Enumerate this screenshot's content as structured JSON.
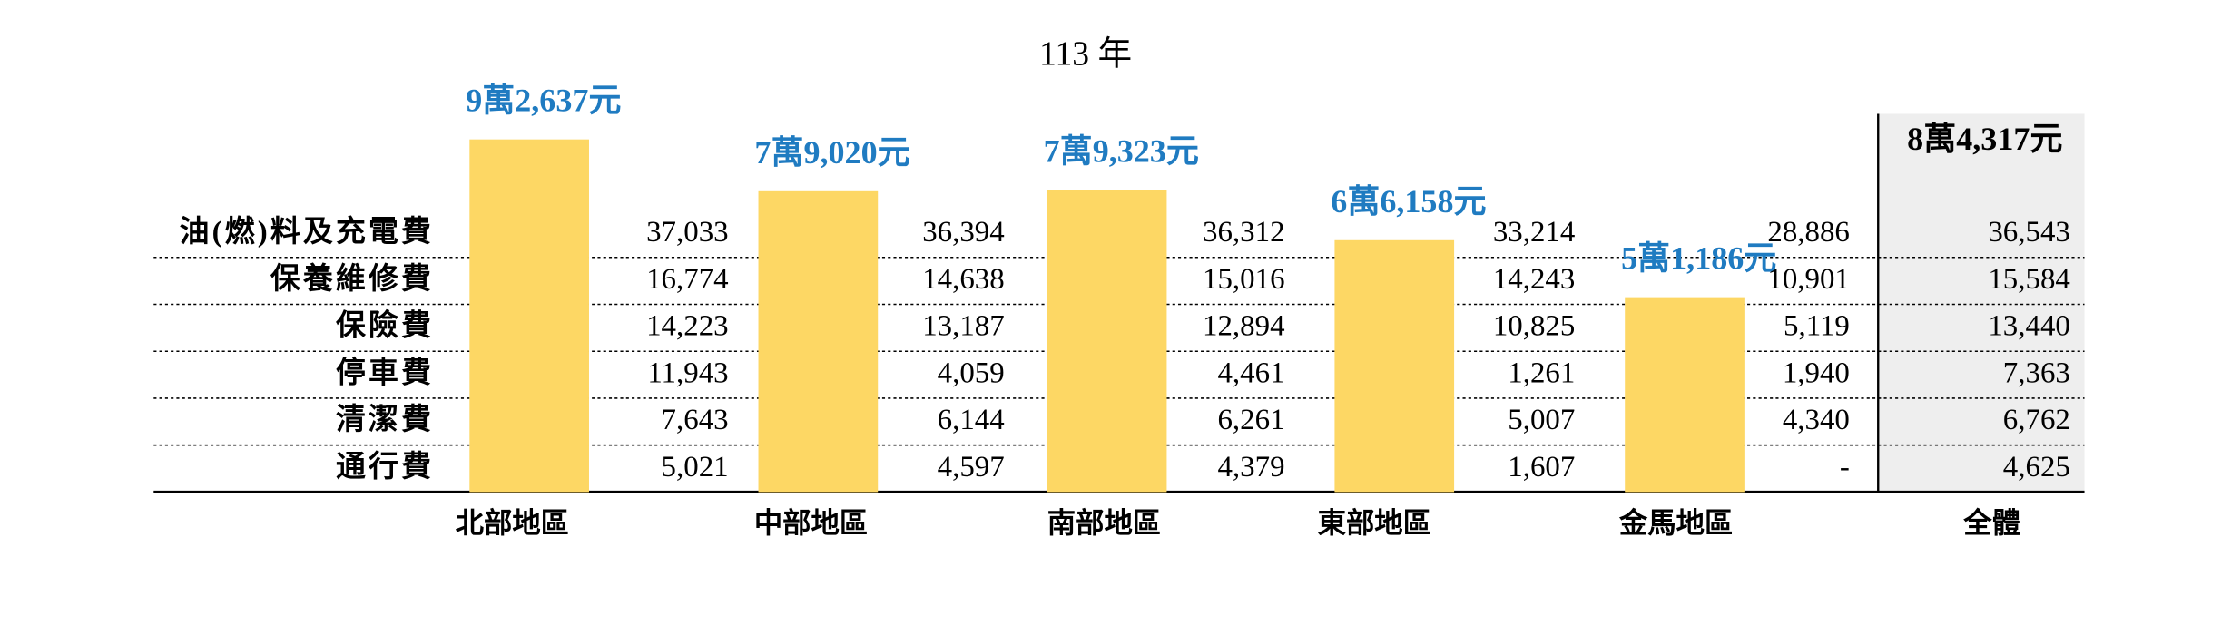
{
  "chart_data": {
    "type": "bar",
    "title": "113 年",
    "categories": [
      "北部地區",
      "中部地區",
      "南部地區",
      "東部地區",
      "金馬地區"
    ],
    "values": [
      92637,
      79020,
      79323,
      66158,
      51186
    ],
    "value_labels": [
      "9萬2,637元",
      "7萬9,020元",
      "7萬9,323元",
      "6萬6,158元",
      "5萬1,186元"
    ],
    "color": "#fdd764",
    "label_color": "#1f7bc1",
    "total_category": "全體",
    "total_label": "8萬4,317元",
    "table": {
      "row_labels": [
        "油(燃)料及充電費",
        "保養維修費",
        "保險費",
        "停車費",
        "清潔費",
        "通行費"
      ],
      "rows": [
        [
          "37,033",
          "36,394",
          "36,312",
          "33,214",
          "28,886",
          "36,543"
        ],
        [
          "16,774",
          "14,638",
          "15,016",
          "14,243",
          "10,901",
          "15,584"
        ],
        [
          "14,223",
          "13,187",
          "12,894",
          "10,825",
          "5,119",
          "13,440"
        ],
        [
          "11,943",
          "4,059",
          "4,461",
          "1,261",
          "1,940",
          "7,363"
        ],
        [
          "7,643",
          "6,144",
          "6,261",
          "5,007",
          "4,340",
          "6,762"
        ],
        [
          "5,021",
          "4,597",
          "4,379",
          "1,607",
          "-",
          "4,625"
        ]
      ]
    }
  }
}
